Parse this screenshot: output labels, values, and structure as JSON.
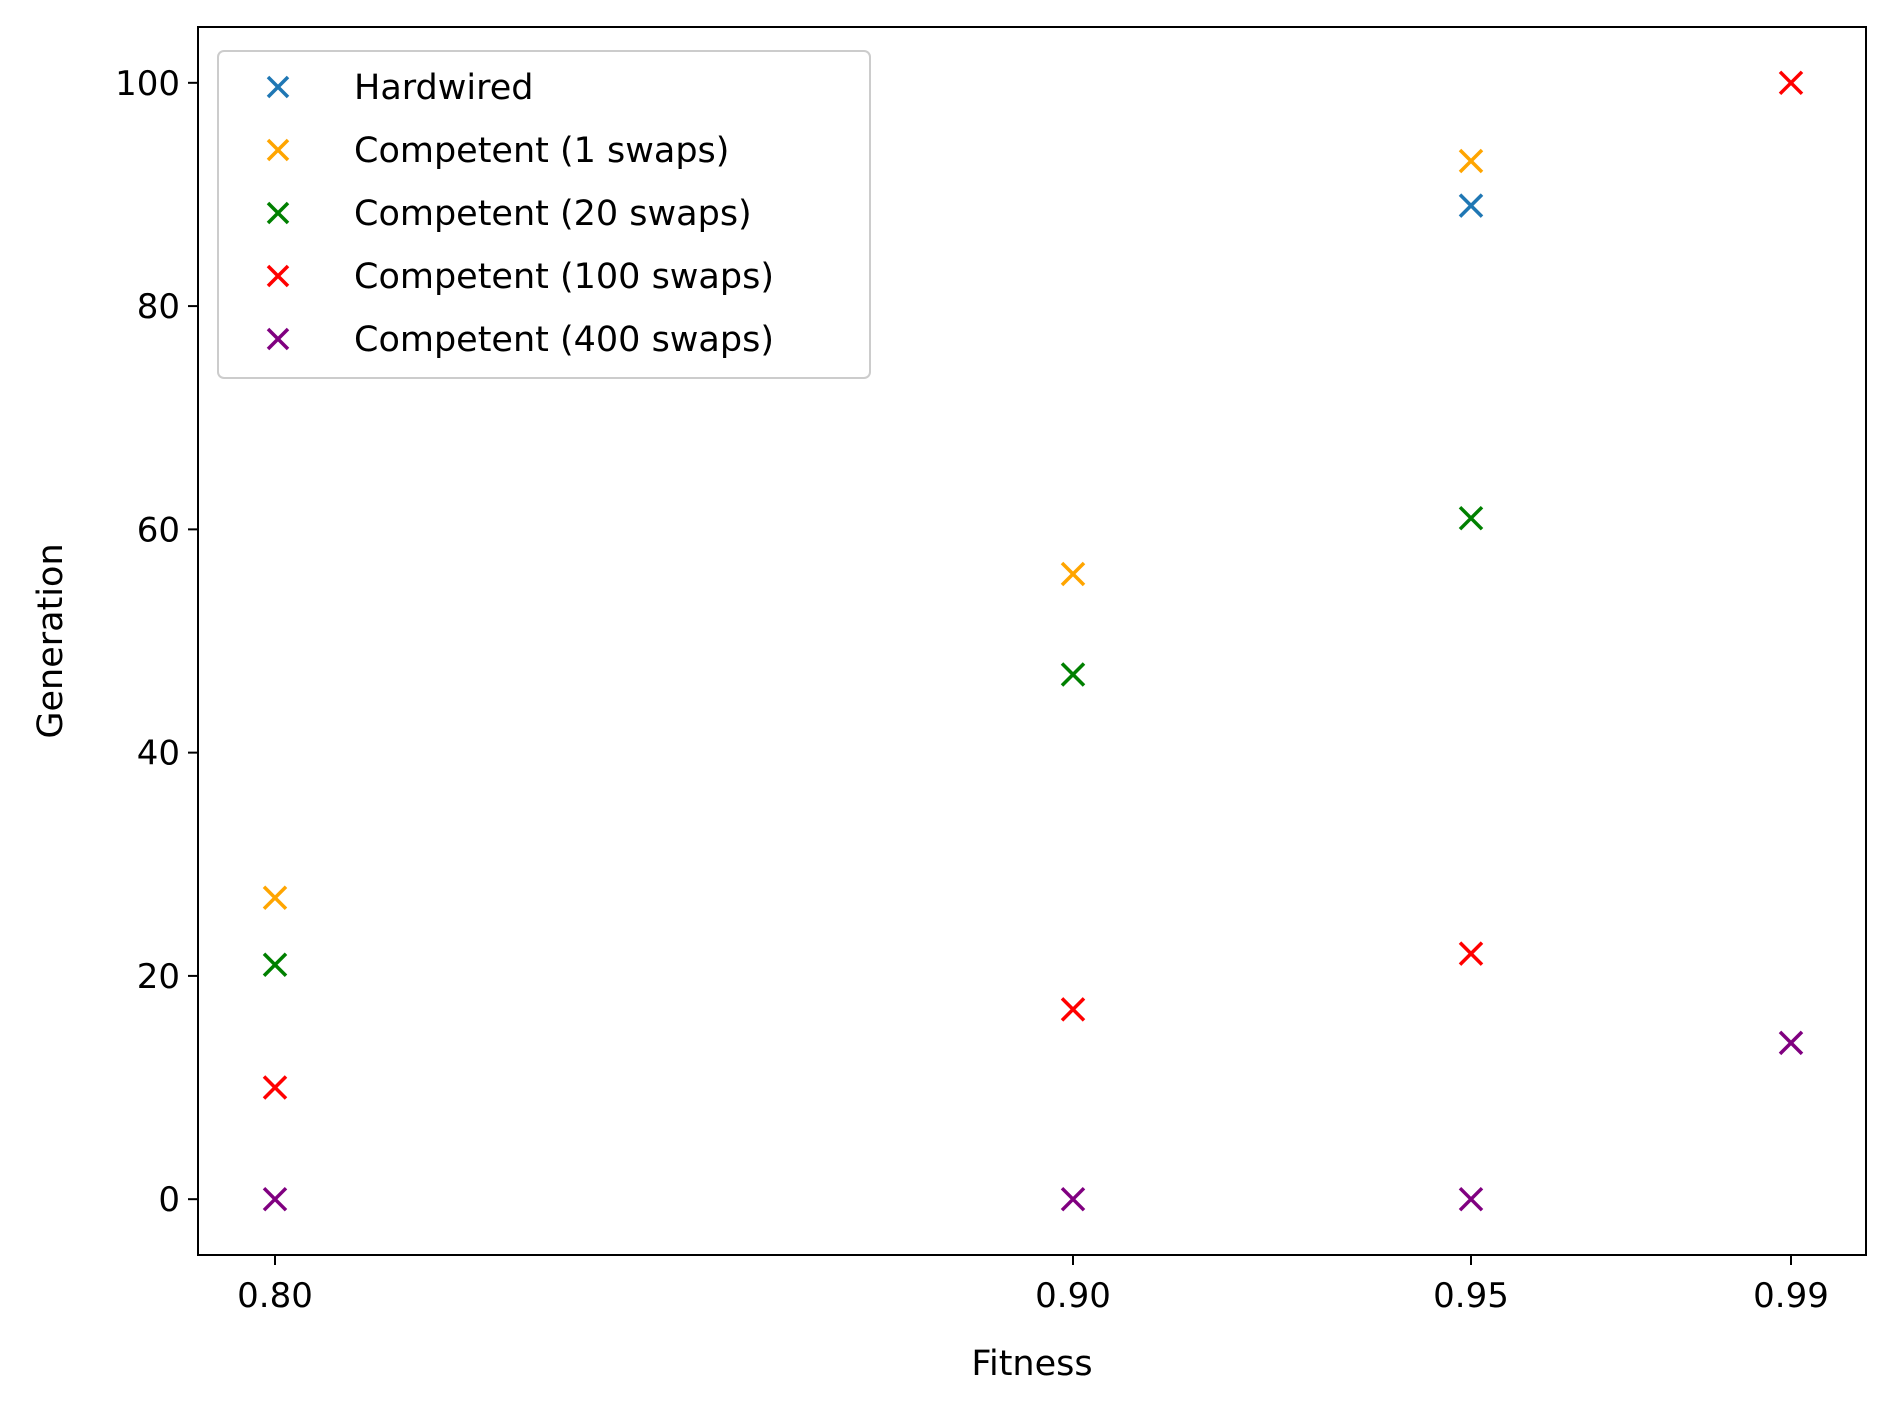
{
  "chart_data": {
    "type": "scatter",
    "title": "",
    "xlabel": "Fitness",
    "ylabel": "Generation",
    "x_tick_labels": [
      "0.80",
      "0.90",
      "0.95",
      "0.99"
    ],
    "x_scale": "categorical-spaced",
    "y_ticks": [
      0,
      20,
      40,
      60,
      80,
      100
    ],
    "y_tick_labels": [
      "0",
      "20",
      "40",
      "60",
      "80",
      "100"
    ],
    "ylim": [
      -5,
      105
    ],
    "grid": false,
    "legend_position": "top-left",
    "marker": "x",
    "series": [
      {
        "name": "Hardwired",
        "color": "#1f77b4",
        "points": [
          {
            "x": "0.95",
            "y": 89
          }
        ]
      },
      {
        "name": "Competent (1 swaps)",
        "color": "#ffa500",
        "points": [
          {
            "x": "0.80",
            "y": 27
          },
          {
            "x": "0.90",
            "y": 56
          },
          {
            "x": "0.95",
            "y": 93
          }
        ]
      },
      {
        "name": "Competent (20 swaps)",
        "color": "#008000",
        "points": [
          {
            "x": "0.80",
            "y": 21
          },
          {
            "x": "0.90",
            "y": 47
          },
          {
            "x": "0.95",
            "y": 61
          }
        ]
      },
      {
        "name": "Competent (100 swaps)",
        "color": "#ff0000",
        "points": [
          {
            "x": "0.80",
            "y": 10
          },
          {
            "x": "0.90",
            "y": 17
          },
          {
            "x": "0.95",
            "y": 22
          },
          {
            "x": "0.99",
            "y": 100
          }
        ]
      },
      {
        "name": "Competent (400 swaps)",
        "color": "#800080",
        "points": [
          {
            "x": "0.80",
            "y": 0
          },
          {
            "x": "0.90",
            "y": 0
          },
          {
            "x": "0.95",
            "y": 0
          },
          {
            "x": "0.99",
            "y": 14
          }
        ]
      }
    ]
  }
}
